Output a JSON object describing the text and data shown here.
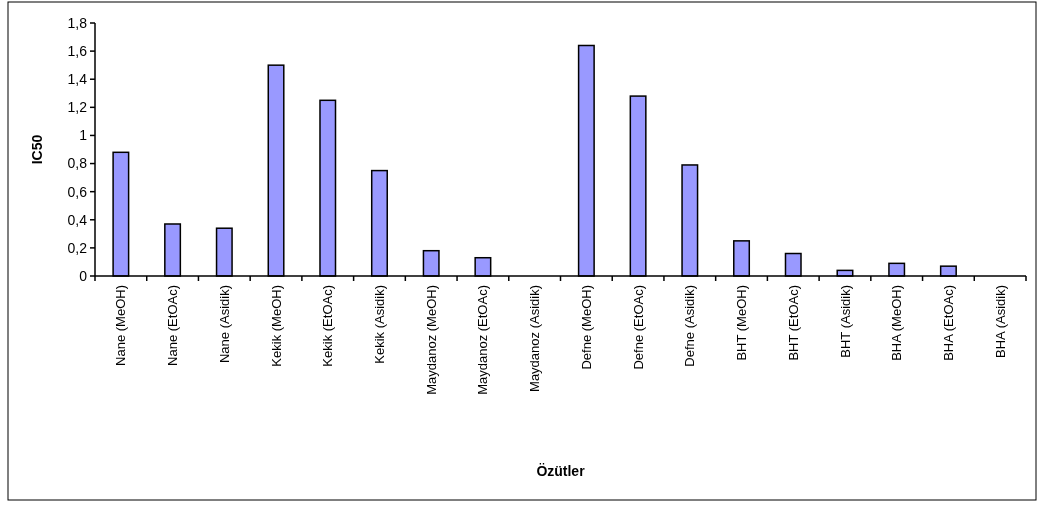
{
  "chart_data": {
    "type": "bar",
    "xlabel": "Özütler",
    "ylabel": "IC50",
    "categories": [
      "Nane (MeOH)",
      "Nane (EtOAc)",
      "Nane (Asidik)",
      "Kekik (MeOH)",
      "Kekik (EtOAc)",
      "Kekik (Asidik)",
      "Maydanoz (MeOH)",
      "Maydanoz (EtOAc)",
      "Maydanoz (Asidik)",
      "Defne (MeOH)",
      "Defne (EtOAc)",
      "Defne (Asidik)",
      "BHT (MeOH)",
      "BHT (EtOAc)",
      "BHT (Asidik)",
      "BHA (MeOH)",
      "BHA (EtOAc)",
      "BHA (Asidik)"
    ],
    "values": [
      0.88,
      0.37,
      0.34,
      1.5,
      1.25,
      0.75,
      0.18,
      0.13,
      0,
      1.64,
      1.28,
      0.79,
      0.25,
      0.16,
      0.04,
      0.09,
      0.07,
      0
    ],
    "color": "#9999ff",
    "ylim": [
      0,
      1.8
    ],
    "yticks": [
      0,
      {
        "value": 0.2,
        "label": "0,2"
      },
      {
        "value": 0.4,
        "label": "0,4"
      },
      {
        "value": 0.6,
        "label": "0,6"
      },
      {
        "value": 0.8,
        "label": "0,8"
      },
      1,
      {
        "value": 1.2,
        "label": "1,2"
      },
      {
        "value": 1.4,
        "label": "1,4"
      },
      {
        "value": 1.6,
        "label": "1,6"
      },
      {
        "value": 1.8,
        "label": "1,8"
      }
    ],
    "grid": false
  }
}
